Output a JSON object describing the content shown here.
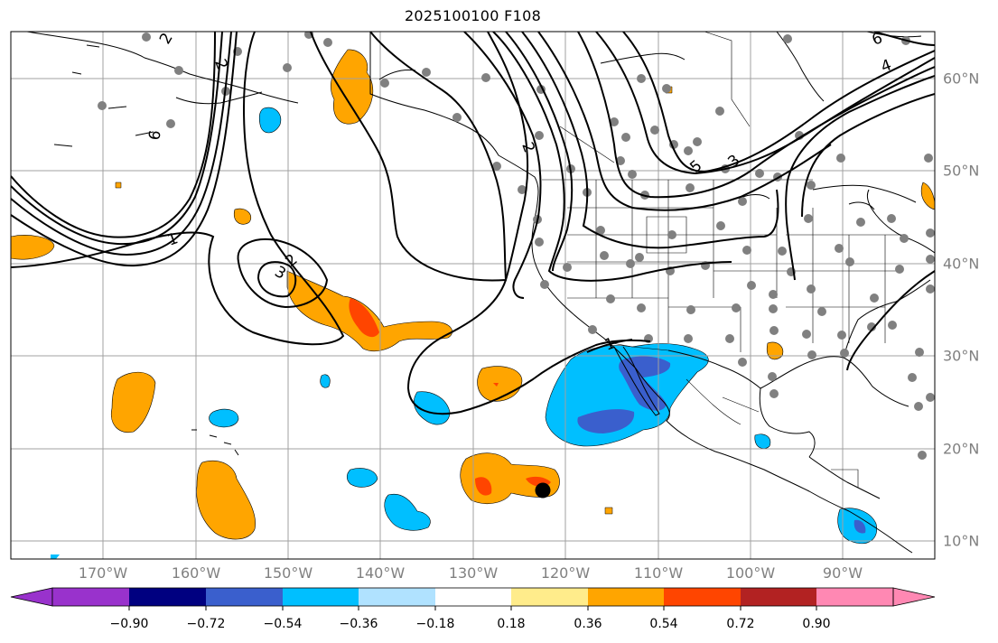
{
  "title": "2025100100 F108",
  "map": {
    "projection": "lat-lon",
    "lon_range": [
      "180°W",
      "80°W"
    ],
    "lat_range": [
      "8°N",
      "65°N"
    ],
    "gridlines": true,
    "lon_labels": [
      "170°W",
      "160°W",
      "150°W",
      "140°W",
      "130°W",
      "120°W",
      "110°W",
      "100°W",
      "90°W"
    ],
    "lat_labels": [
      "60°N",
      "50°N",
      "40°N",
      "30°N",
      "20°N",
      "10°N"
    ],
    "contour_labels": [
      "2",
      "2",
      "6",
      "1",
      "3",
      "2",
      "2",
      "5",
      "3",
      "4",
      "6",
      "1"
    ],
    "station_marker_color": "#808080",
    "marker_color": "#000000"
  },
  "colorbar": {
    "ticks": [
      "−0.90",
      "−0.72",
      "−0.54",
      "−0.36",
      "−0.18",
      "0.18",
      "0.36",
      "0.54",
      "0.72",
      "0.90"
    ],
    "colors": [
      "#9932cc",
      "#000080",
      "#3a5fcd",
      "#00bfff",
      "#b0e2ff",
      "#ffffff",
      "#ffec8b",
      "#ffa500",
      "#ff4500",
      "#b22222",
      "#ff88b3"
    ]
  }
}
